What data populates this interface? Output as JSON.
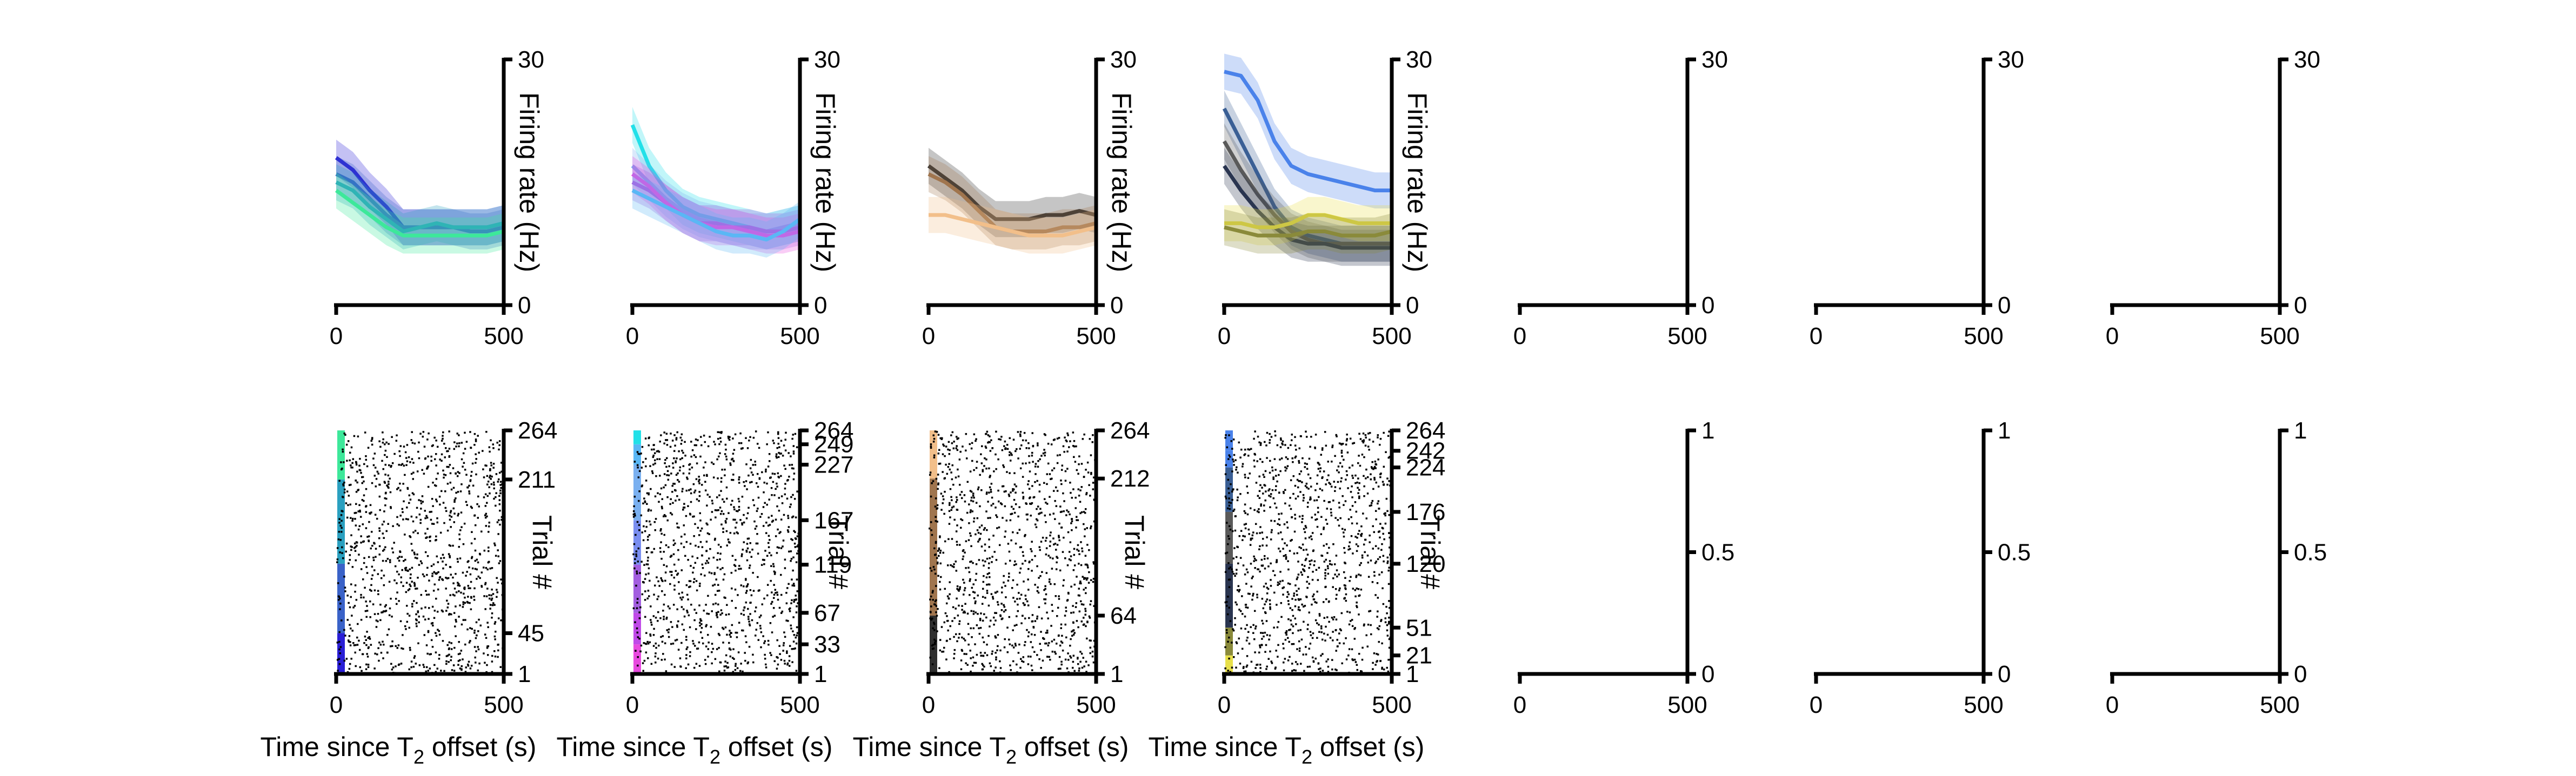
{
  "figure": {
    "time_axis_label": "Time since T",
    "time_axis_sub": "2",
    "time_axis_suffix": " offset (s)",
    "rate_axis_label": "Firing rate (Hz)",
    "trial_axis_label": "Trial #"
  },
  "chart_data": [
    {
      "type": "line",
      "panel": "rate-1",
      "xlim": [
        0,
        500
      ],
      "ylim": [
        0,
        30
      ],
      "x_ticks": [
        "0",
        "500"
      ],
      "y_ticks": [
        "0",
        "30"
      ],
      "ylabel": "Firing rate (Hz)",
      "grid": false,
      "legend": "none",
      "x": [
        0,
        50,
        100,
        150,
        200,
        250,
        300,
        350,
        400,
        450,
        500
      ],
      "series": [
        {
          "color": "#2a1fd6",
          "values": [
            18,
            16.5,
            14,
            12,
            9.5,
            9.5,
            9.5,
            9.5,
            9.5,
            9.5,
            10
          ]
        },
        {
          "color": "#3a62c8",
          "values": [
            16,
            15,
            13,
            11,
            9.5,
            9.5,
            9.5,
            9.5,
            9,
            9,
            9.5
          ]
        },
        {
          "color": "#2aa0c0",
          "values": [
            15,
            14,
            12,
            10.5,
            9,
            9.5,
            10,
            9.5,
            9.5,
            9.5,
            10
          ]
        },
        {
          "color": "#3de89a",
          "values": [
            14,
            12.5,
            11,
            9.5,
            8.5,
            8.5,
            8.5,
            8.5,
            8.5,
            8.5,
            9
          ]
        }
      ]
    },
    {
      "type": "line",
      "panel": "rate-2",
      "xlim": [
        0,
        500
      ],
      "ylim": [
        0,
        30
      ],
      "x_ticks": [
        "0",
        "500"
      ],
      "y_ticks": [
        "0",
        "30"
      ],
      "ylabel": "Firing rate (Hz)",
      "grid": false,
      "legend": "none",
      "x": [
        0,
        50,
        100,
        150,
        200,
        250,
        300,
        350,
        400,
        450,
        500
      ],
      "series": [
        {
          "color": "#22e0e8",
          "values": [
            22,
            17,
            14,
            12,
            11,
            10.5,
            10,
            9.5,
            9,
            9.5,
            10
          ]
        },
        {
          "color": "#7ab0f0",
          "values": [
            17,
            15,
            13,
            11.5,
            10.5,
            10,
            9.5,
            9,
            9,
            9.5,
            10
          ]
        },
        {
          "color": "#a35ee0",
          "values": [
            15,
            14,
            12.5,
            11,
            10,
            10,
            9.5,
            9.5,
            9,
            9,
            9.5
          ]
        },
        {
          "color": "#e84adf",
          "values": [
            16,
            14.5,
            12.5,
            11,
            10,
            9.5,
            9.5,
            9,
            8.5,
            8.5,
            9
          ]
        },
        {
          "color": "#5ab7f5",
          "values": [
            14,
            13,
            12,
            11,
            10,
            9,
            8.5,
            8.5,
            8,
            9,
            10.5
          ]
        }
      ]
    },
    {
      "type": "line",
      "panel": "rate-3",
      "xlim": [
        0,
        500
      ],
      "ylim": [
        0,
        30
      ],
      "x_ticks": [
        "0",
        "500"
      ],
      "y_ticks": [
        "0",
        "30"
      ],
      "ylabel": "Firing rate (Hz)",
      "grid": false,
      "legend": "none",
      "x": [
        0,
        50,
        100,
        150,
        200,
        250,
        300,
        350,
        400,
        450,
        500
      ],
      "series": [
        {
          "color": "#2e2e2e",
          "values": [
            17,
            15.5,
            14,
            12,
            10.5,
            10.5,
            10.5,
            11,
            11,
            11.5,
            11
          ]
        },
        {
          "color": "#a0754e",
          "values": [
            16,
            15,
            13.5,
            11.5,
            9.5,
            9,
            9,
            9,
            9.5,
            9.5,
            10
          ]
        },
        {
          "color": "#f2bf8a",
          "values": [
            11,
            11,
            10.5,
            10,
            9.5,
            9,
            8.5,
            8.5,
            8.5,
            9,
            9.5
          ]
        }
      ]
    },
    {
      "type": "line",
      "panel": "rate-4",
      "xlim": [
        0,
        500
      ],
      "ylim": [
        0,
        30
      ],
      "x_ticks": [
        "0",
        "500"
      ],
      "y_ticks": [
        "0",
        "30"
      ],
      "ylabel": "Firing rate (Hz)",
      "grid": false,
      "legend": "none",
      "x": [
        0,
        50,
        100,
        150,
        200,
        250,
        300,
        350,
        400,
        450,
        500
      ],
      "series": [
        {
          "color": "#4a82ea",
          "values": [
            28.5,
            28,
            25,
            20,
            17,
            16,
            15.5,
            15,
            14.5,
            14,
            14
          ]
        },
        {
          "color": "#3a5f95",
          "values": [
            24,
            20,
            16,
            12,
            9.5,
            8.5,
            8,
            7.5,
            7.5,
            7.5,
            7.5
          ]
        },
        {
          "color": "#5a5a5a",
          "values": [
            20,
            16.5,
            13.5,
            11,
            9,
            8,
            7.5,
            7.5,
            7.5,
            7.5,
            7.5
          ]
        },
        {
          "color": "#2a3550",
          "values": [
            17,
            14,
            11.5,
            9.5,
            8,
            7.5,
            7.5,
            7,
            7,
            7,
            7
          ]
        },
        {
          "color": "#e8e04a",
          "values": [
            10,
            10,
            9.5,
            9.5,
            10,
            11,
            11,
            10.5,
            10,
            10,
            10
          ]
        },
        {
          "color": "#8a8a3a",
          "values": [
            9.5,
            9,
            8.5,
            8.5,
            8.5,
            9,
            9,
            8.5,
            8.5,
            8.5,
            9
          ]
        }
      ]
    },
    {
      "type": "line",
      "panel": "rate-5",
      "xlim": [
        0,
        500
      ],
      "ylim": [
        0,
        30
      ],
      "x_ticks": [
        "0",
        "500"
      ],
      "y_ticks": [
        "0",
        "30"
      ],
      "series": []
    },
    {
      "type": "line",
      "panel": "rate-6",
      "xlim": [
        0,
        500
      ],
      "ylim": [
        0,
        30
      ],
      "x_ticks": [
        "0",
        "500"
      ],
      "y_ticks": [
        "0",
        "30"
      ],
      "series": []
    },
    {
      "type": "line",
      "panel": "rate-7",
      "xlim": [
        0,
        500
      ],
      "ylim": [
        0,
        30
      ],
      "x_ticks": [
        "0",
        "500"
      ],
      "y_ticks": [
        "0",
        "30"
      ],
      "series": []
    },
    {
      "type": "scatter",
      "panel": "raster-1",
      "xlim": [
        0,
        500
      ],
      "ylim": [
        1,
        264
      ],
      "x_ticks": [
        "0",
        "500"
      ],
      "y_ticks": [
        "1",
        "45",
        "211",
        "264"
      ],
      "ylabel": "Trial #",
      "condition_bands": [
        {
          "from": 1,
          "to": 45,
          "color": "#2a1fd6"
        },
        {
          "from": 45,
          "to": 120,
          "color": "#3a62c8"
        },
        {
          "from": 120,
          "to": 211,
          "color": "#2aa0c0"
        },
        {
          "from": 211,
          "to": 264,
          "color": "#3de89a"
        }
      ]
    },
    {
      "type": "scatter",
      "panel": "raster-2",
      "xlim": [
        0,
        500
      ],
      "ylim": [
        1,
        264
      ],
      "x_ticks": [
        "0",
        "500"
      ],
      "y_ticks": [
        "1",
        "33",
        "67",
        "119",
        "167",
        "227",
        "249",
        "264"
      ],
      "ylabel": "Trial #",
      "condition_bands": [
        {
          "from": 1,
          "to": 33,
          "color": "#e84adf"
        },
        {
          "from": 33,
          "to": 67,
          "color": "#c04ae8"
        },
        {
          "from": 67,
          "to": 119,
          "color": "#a35ee0"
        },
        {
          "from": 119,
          "to": 167,
          "color": "#7a8ef0"
        },
        {
          "from": 167,
          "to": 227,
          "color": "#7ab0f0"
        },
        {
          "from": 227,
          "to": 249,
          "color": "#5ab7f5"
        },
        {
          "from": 249,
          "to": 264,
          "color": "#22e0e8"
        }
      ]
    },
    {
      "type": "scatter",
      "panel": "raster-3",
      "xlim": [
        0,
        500
      ],
      "ylim": [
        1,
        264
      ],
      "x_ticks": [
        "0",
        "500"
      ],
      "y_ticks": [
        "1",
        "64",
        "212",
        "264"
      ],
      "ylabel": "Trial #",
      "condition_bands": [
        {
          "from": 1,
          "to": 64,
          "color": "#2e2e2e"
        },
        {
          "from": 64,
          "to": 212,
          "color": "#a0754e"
        },
        {
          "from": 212,
          "to": 264,
          "color": "#f2bf8a"
        }
      ]
    },
    {
      "type": "scatter",
      "panel": "raster-4",
      "xlim": [
        0,
        500
      ],
      "ylim": [
        1,
        264
      ],
      "x_ticks": [
        "0",
        "500"
      ],
      "y_ticks": [
        "1",
        "21",
        "51",
        "120",
        "176",
        "224",
        "242",
        "264"
      ],
      "ylabel": "Trial #",
      "condition_bands": [
        {
          "from": 1,
          "to": 21,
          "color": "#e8e04a"
        },
        {
          "from": 21,
          "to": 51,
          "color": "#8a8a3a"
        },
        {
          "from": 51,
          "to": 120,
          "color": "#2a3550"
        },
        {
          "from": 120,
          "to": 176,
          "color": "#5a5a5a"
        },
        {
          "from": 176,
          "to": 224,
          "color": "#3a5f95"
        },
        {
          "from": 224,
          "to": 242,
          "color": "#4a82ea"
        },
        {
          "from": 242,
          "to": 264,
          "color": "#4a82ea"
        }
      ]
    },
    {
      "type": "scatter",
      "panel": "raster-5",
      "xlim": [
        0,
        500
      ],
      "ylim": [
        0,
        1
      ],
      "x_ticks": [
        "0",
        "500"
      ],
      "y_ticks": [
        "0",
        "0.5",
        "1"
      ]
    },
    {
      "type": "scatter",
      "panel": "raster-6",
      "xlim": [
        0,
        500
      ],
      "ylim": [
        0,
        1
      ],
      "x_ticks": [
        "0",
        "500"
      ],
      "y_ticks": [
        "0",
        "0.5",
        "1"
      ]
    },
    {
      "type": "scatter",
      "panel": "raster-7",
      "xlim": [
        0,
        500
      ],
      "ylim": [
        0,
        1
      ],
      "x_ticks": [
        "0",
        "500"
      ],
      "y_ticks": [
        "0",
        "0.5",
        "1"
      ]
    }
  ]
}
